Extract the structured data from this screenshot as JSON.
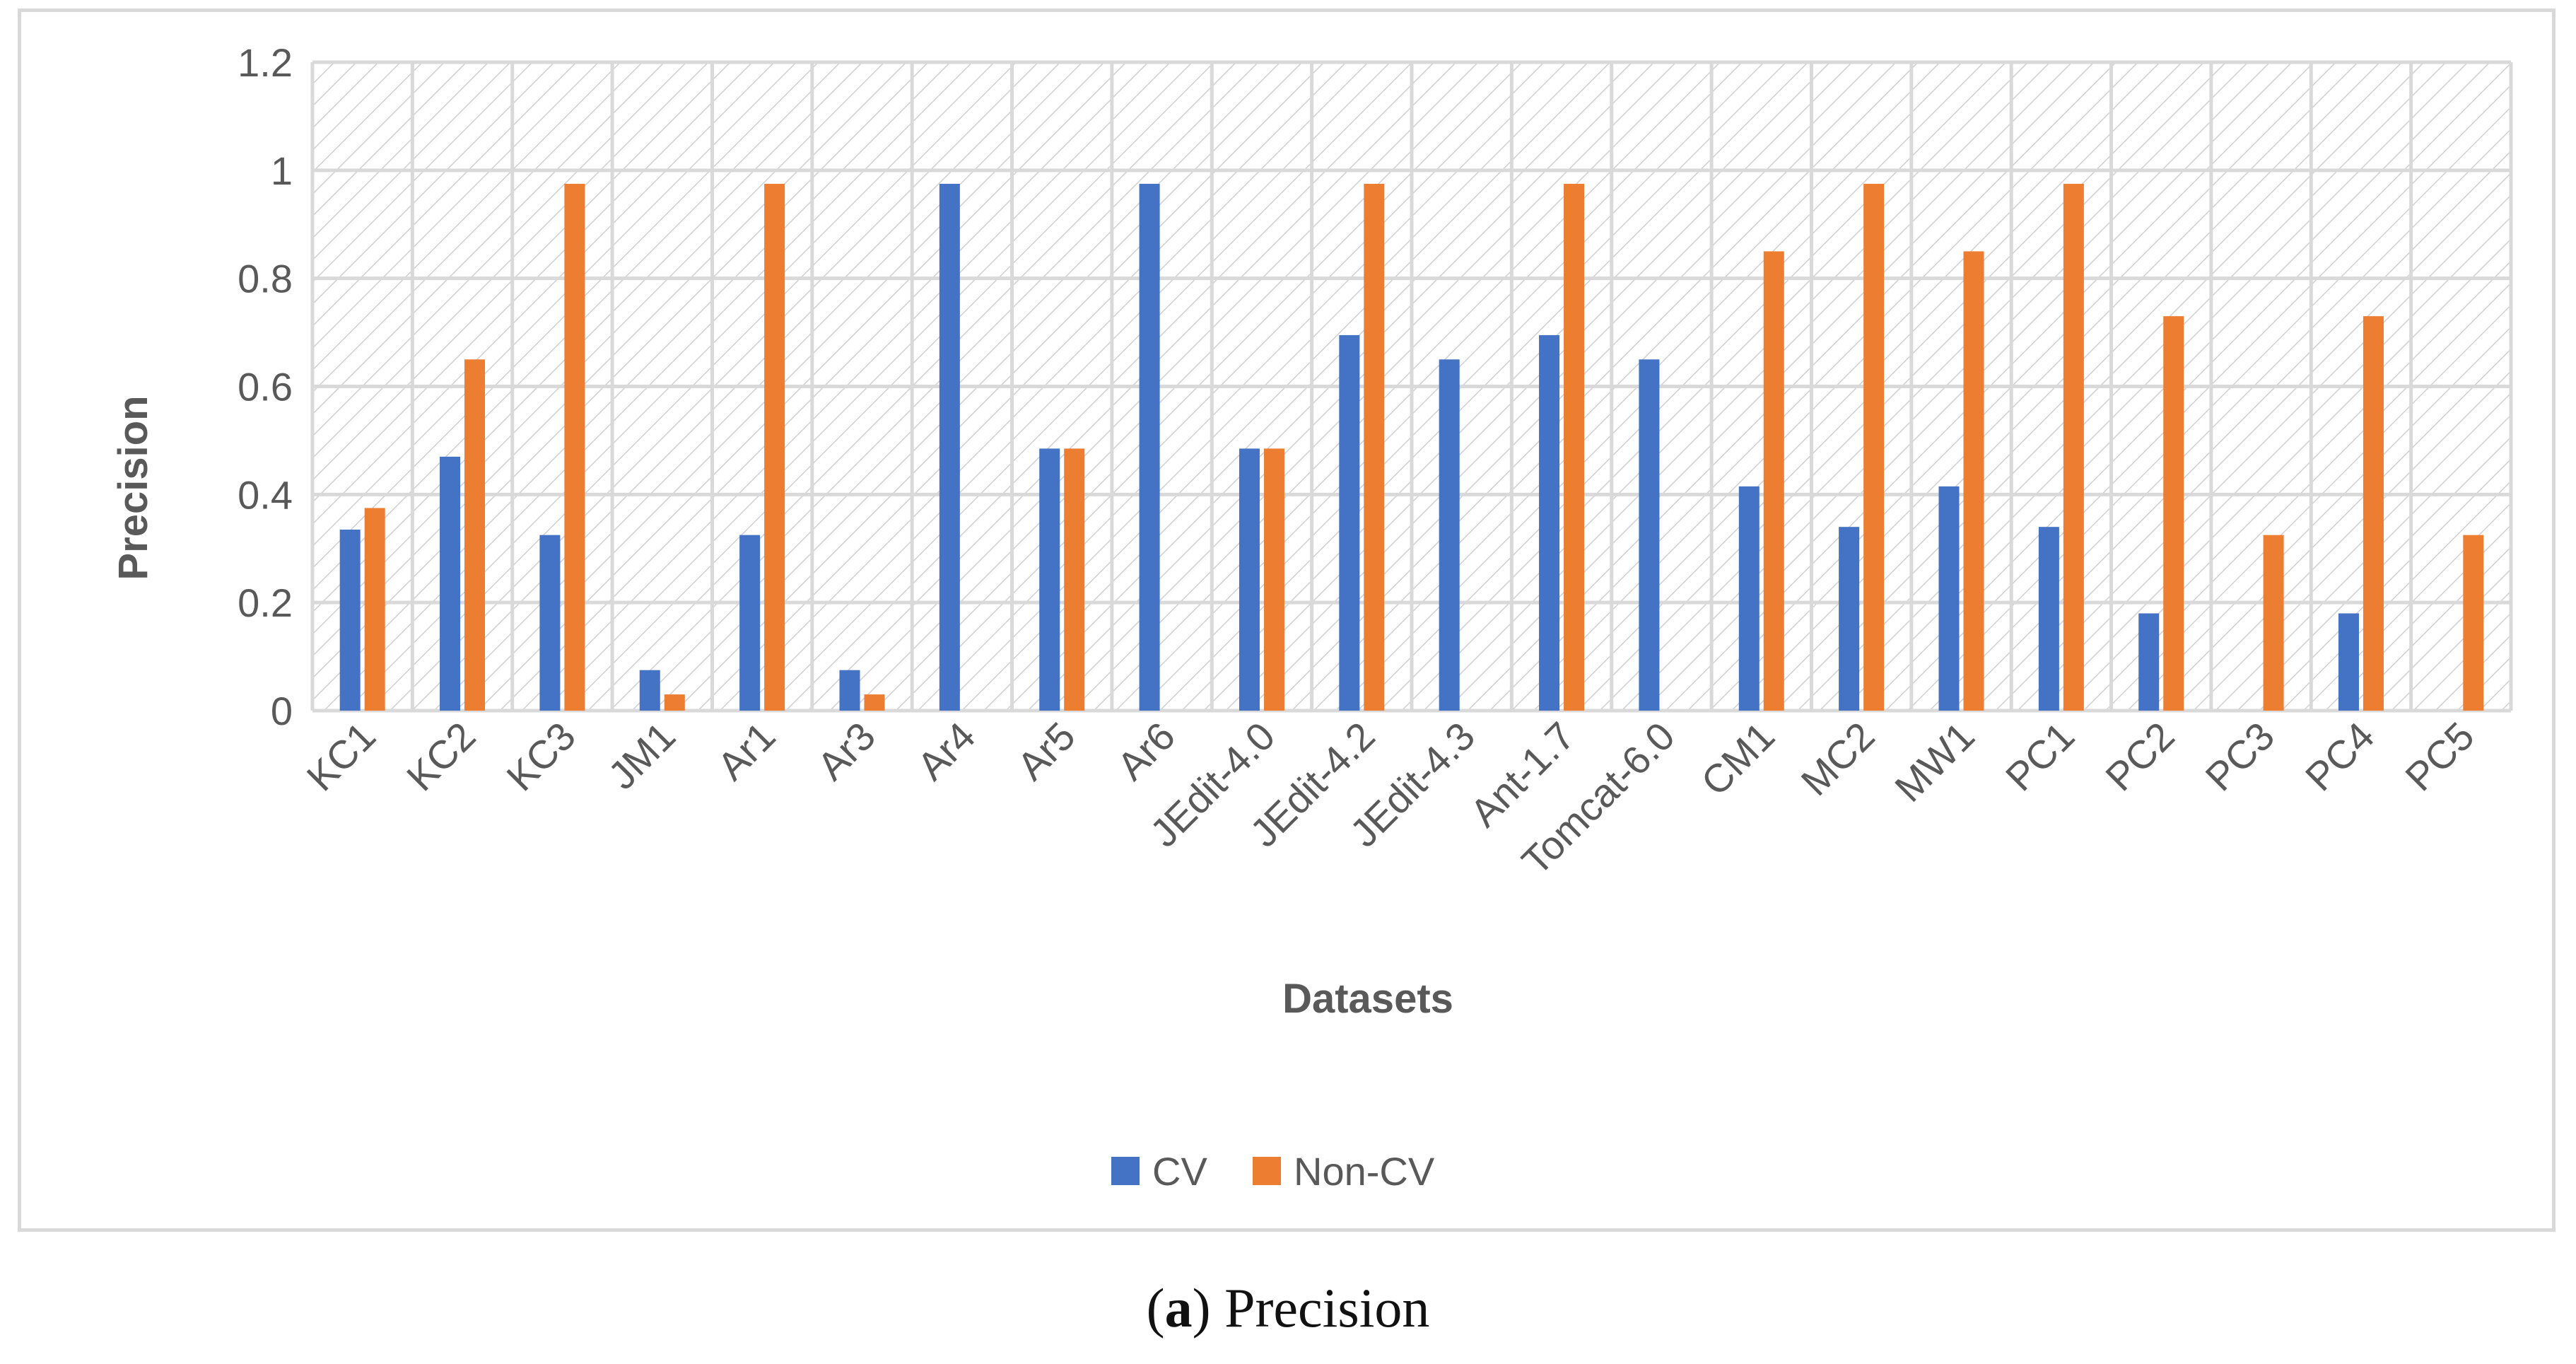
{
  "caption": {
    "open": "(",
    "letter": "a",
    "close": ")",
    "text": "Precision"
  },
  "colors": {
    "cv": "#4472C4",
    "non_cv": "#ED7D31",
    "grid": "#d9d9d9",
    "text": "#595959"
  },
  "chart_data": {
    "type": "bar",
    "title": "",
    "xlabel": "Datasets",
    "ylabel": "Precision",
    "ylim": [
      0,
      1.2
    ],
    "yticks": [
      "0",
      "0.2",
      "0.4",
      "0.6",
      "0.8",
      "1",
      "1.2"
    ],
    "grid": true,
    "legend_position": "bottom",
    "categories": [
      "KC1",
      "KC2",
      "KC3",
      "JM1",
      "Ar1",
      "Ar3",
      "Ar4",
      "Ar5",
      "Ar6",
      "JEdit-4.0",
      "JEdit-4.2",
      "JEdit-4.3",
      "Ant-1.7",
      "Tomcat-6.0",
      "CM1",
      "MC2",
      "MW1",
      "PC1",
      "PC2",
      "PC3",
      "PC4",
      "PC5"
    ],
    "series": [
      {
        "name": "CV",
        "values": [
          0.335,
          0.47,
          0.325,
          0.075,
          0.325,
          0.075,
          0.975,
          0.485,
          0.975,
          0.485,
          0.695,
          0.65,
          0.695,
          0.65,
          0.415,
          0.34,
          0.415,
          0.34,
          0.18,
          0,
          0.18,
          0
        ]
      },
      {
        "name": "Non-CV",
        "values": [
          0.375,
          0.65,
          0.975,
          0.03,
          0.975,
          0.03,
          0,
          0.485,
          0,
          0.485,
          0.975,
          0,
          0.975,
          0,
          0.85,
          0.975,
          0.85,
          0.975,
          0.73,
          0.325,
          0.73,
          0.325
        ]
      }
    ]
  }
}
